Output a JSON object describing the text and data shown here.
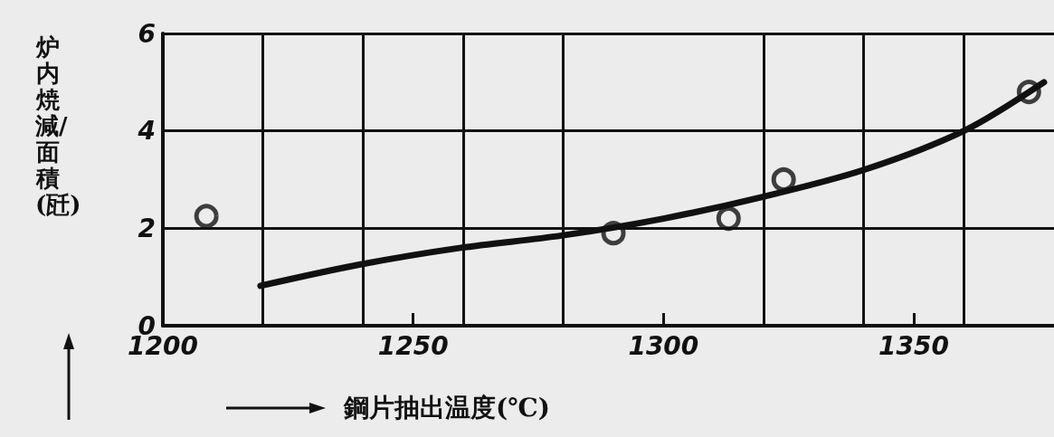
{
  "chart_data": {
    "type": "scatter",
    "xlabel": "鋼片抽出温度(℃)",
    "ylabel": "炉内焼減/面積(瓩)",
    "xlim": [
      1200,
      1378
    ],
    "ylim": [
      0,
      6
    ],
    "xticks": [
      1200,
      {
        "value": 1220,
        "label": null
      },
      {
        "value": 1240,
        "label": null
      },
      1250,
      {
        "value": 1260,
        "label": null
      },
      {
        "value": 1280,
        "label": null
      },
      1300,
      {
        "value": 1320,
        "label": null
      },
      {
        "value": 1340,
        "label": null
      },
      1350,
      {
        "value": 1360,
        "label": null
      }
    ],
    "yticks": [
      0,
      2,
      4,
      6
    ],
    "grid": true,
    "marker": "circle",
    "series": [
      {
        "color": "#111111",
        "x": [
          1208.7,
          1290,
          1313,
          1324,
          1373
        ],
        "values": [
          2.25,
          1.9,
          2.2,
          3.0,
          4.8
        ]
      },
      {
        "type": "line",
        "color": "#111111",
        "marker": "none",
        "x": [
          1219.5,
          1239,
          1259.5,
          1279.6,
          1300,
          1320,
          1340,
          1360,
          1376
        ],
        "values": [
          0.82,
          1.25,
          1.6,
          1.85,
          2.2,
          2.65,
          3.2,
          4.0,
          5.0
        ]
      }
    ]
  }
}
